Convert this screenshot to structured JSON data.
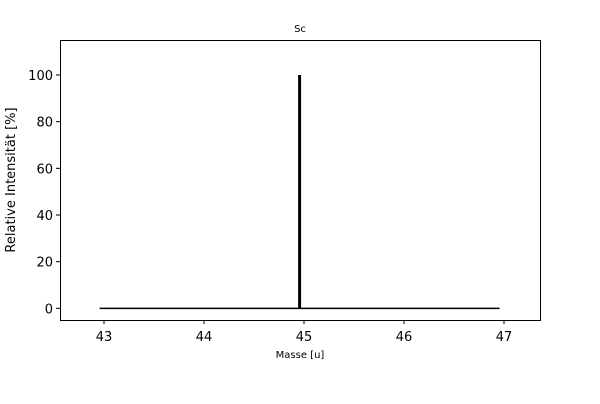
{
  "chart_data": {
    "type": "bar",
    "title": "Sc",
    "xlabel": "Masse [u]",
    "ylabel": "Relative Intensität [%]",
    "xlim": [
      42.56,
      47.36
    ],
    "ylim": [
      -5,
      115
    ],
    "xticks": [
      43,
      44,
      45,
      46,
      47
    ],
    "yticks": [
      0,
      20,
      40,
      60,
      80,
      100
    ],
    "baseline": {
      "x": [
        42.956,
        46.956
      ],
      "y": 0
    },
    "peaks": [
      {
        "x": 44.956,
        "y": 100
      }
    ],
    "grid": false,
    "color": "#000000"
  }
}
